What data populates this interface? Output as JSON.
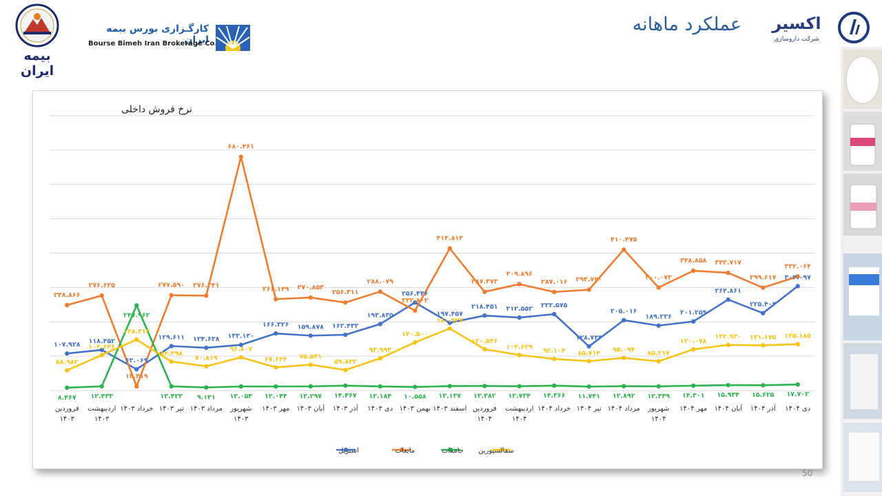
{
  "header": {
    "title": "عملکرد ماهانه",
    "brand_fa": "کارگـزاری بورس بیمه ایران",
    "brand_en": "Bourse Bimeh Iran Brokerage Co.",
    "left_logo_text": "بیمه ایران",
    "right_logo_text": "اکسیر",
    "right_logo_sub": "شرکت داروسازی"
  },
  "page_number": "50",
  "colors": {
    "estril": "#4472c4",
    "mayeat": "#ed7d31",
    "jamedat": "#2eb24f",
    "sefalosporin": "#f6c318",
    "title": "#2b5d9b"
  },
  "chart_data": {
    "type": "line",
    "title": "نرخ فروش داخلی",
    "categories": [
      "فروردین ۱۴۰۳",
      "اردیبهشت ۱۴۰۳",
      "خرداد ۱۴۰۳",
      "تیر ۱۴۰۳",
      "مرداد ۱۴۰۳",
      "شهریور ۱۴۰۳",
      "مهر ۱۴۰۳",
      "آبان ۱۴۰۳",
      "آذر ۱۴۰۳",
      "دی ۱۴۰۳",
      "بهمن ۱۴۰۳",
      "اسفند ۱۴۰۳",
      "فروردین ۱۴۰۴",
      "اردیبهشت ۱۴۰۴",
      "خرداد ۱۴۰۴",
      "تیر ۱۴۰۴",
      "مرداد ۱۴۰۴",
      "شهریور ۱۴۰۴",
      "مهر ۱۴۰۴",
      "آبان ۱۴۰۴",
      "آذر ۱۴۰۴",
      "دی ۱۴۰۴"
    ],
    "ylim": [
      0,
      800
    ],
    "grid": true,
    "legend": "bottom",
    "series": [
      {
        "name": "استریل",
        "key": "estril",
        "values": [
          107.928,
          118.452,
          62.069,
          129.611,
          124.628,
          133.13,
          166.326,
          159.878,
          162.432,
          193.835,
          256.446,
          197.457,
          218.451,
          212.552,
          222.575,
          128.743,
          205.016,
          189.236,
          201.259,
          264.861,
          225.404,
          304.097
        ],
        "labels": [
          "۱۰۷.۹۲۸",
          "۱۱۸.۴۵۲",
          "۶۲.۰۶۹",
          "۱۲۹.۶۱۱",
          "۱۲۴.۶۲۸",
          "۱۳۳.۱۳۰",
          "۱۶۶.۳۲۶",
          "۱۵۹.۸۷۸",
          "۱۶۲.۴۳۲",
          "۱۹۳.۸۳۵",
          "۲۵۶.۴۴۶",
          "۱۹۷.۴۵۷",
          "۲۱۸.۴۵۱",
          "۲۱۲.۵۵۲",
          "۲۲۲.۵۷۵",
          "۱۲۸.۷۴۳",
          "۲۰۵.۰۱۶",
          "۱۸۹.۲۳۶",
          "۲۰۱.۲۵۹",
          "۲۶۴.۸۶۱",
          "۲۲۵.۴۰۴",
          "۳۰۴.۰۹۷"
        ]
      },
      {
        "name": "مایعات",
        "key": "mayeat",
        "values": [
          248.866,
          276.635,
          12.419,
          277.59,
          276.341,
          680.461,
          266.149,
          270.853,
          256.311,
          288.079,
          232.802,
          413.813,
          287.373,
          309.896,
          287.016,
          293.74,
          410.475,
          300.073,
          348.858,
          342.717,
          299.617,
          332.064
        ],
        "labels": [
          "۲۴۸.۸۶۶",
          "۲۷۶.۶۳۵",
          "۱۲.۴۱۹",
          "۲۷۷.۵۹۰",
          "۲۷۶.۳۴۱",
          "۶۸۰.۴۶۱",
          "۲۶۶.۱۴۹",
          "۲۷۰.۸۵۳",
          "۲۵۶.۳۱۱",
          "۲۸۸.۰۷۹",
          "۲۳۲.۸۰۲",
          "۴۱۳.۸۱۳",
          "۲۸۷.۳۷۳",
          "۳۰۹.۸۹۶",
          "۲۸۷.۰۱۶",
          "۲۹۳.۷۴۰",
          "۴۱۰.۴۷۵",
          "۳۰۰.۰۷۳",
          "۳۴۸.۸۵۸",
          "۳۴۲.۷۱۷",
          "۲۹۹.۶۱۷",
          "۳۳۲.۰۶۴"
        ]
      },
      {
        "name": "جامدات",
        "key": "jamedat",
        "values": [
          8.467,
          12.433,
          247.962,
          12.422,
          9.141,
          12.053,
          12.044,
          12.297,
          14.467,
          12.184,
          10.558,
          13.137,
          13.382,
          12.734,
          14.366,
          11.741,
          12.892,
          12.339,
          14.301,
          15.934,
          15.625,
          17.702
        ],
        "labels": [
          "۸.۴۶۷",
          "۱۲.۴۳۳",
          "۲۴۷.۹۶۲",
          "۱۲.۴۲۲",
          "۹.۱۴۱",
          "۱۲.۰۵۳",
          "۱۲.۰۴۴",
          "۱۲.۲۹۷",
          "۱۴.۴۶۷",
          "۱۲.۱۸۴",
          "۱۰.۵۵۸",
          "۱۳.۱۳۷",
          "۱۳.۳۸۲",
          "۱۲.۷۳۴",
          "۱۴.۳۶۶",
          "۱۱.۷۴۱",
          "۱۲.۸۹۲",
          "۱۲.۳۳۹",
          "۱۴.۳۰۱",
          "۱۵.۹۳۴",
          "۱۵.۶۲۵",
          "۱۷.۷۰۲"
        ]
      },
      {
        "name": "سفالسپورین",
        "key": "sefalosporin",
        "values": [
          58.982,
          103.636,
          148.312,
          84.398,
          70.819,
          96.807,
          67.624,
          75.531,
          59.832,
          93.993,
          140.5,
          180.927,
          120.546,
          103.629,
          92.104,
          85.714,
          95.094,
          85.217,
          120.078,
          132.93,
          131.675,
          135.185
        ],
        "labels": [
          "۵۸.۹۸۲",
          "۱۰۳.۶۳۶",
          "۱۴۸.۳۱۲",
          "۸۴.۳۹۸",
          "۷۰.۸۱۹",
          "۹۶.۸۰۷",
          "۶۷.۶۲۴",
          "۷۵.۵۳۱",
          "۵۹.۸۳۲",
          "۹۳.۹۹۳",
          "۱۴۰.۵۰۰",
          "۱۸۰.۹۲۷",
          "۱۲۰.۵۴۶",
          "۱۰۳.۶۲۹",
          "۹۲.۱۰۴",
          "۸۵.۷۱۴",
          "۹۵.۰۹۴",
          "۸۵.۲۱۷",
          "۱۲۰.۰۷۸",
          "۱۳۲.۹۳۰",
          "۱۳۱.۶۷۵",
          "۱۳۵.۱۸۵"
        ]
      }
    ]
  }
}
